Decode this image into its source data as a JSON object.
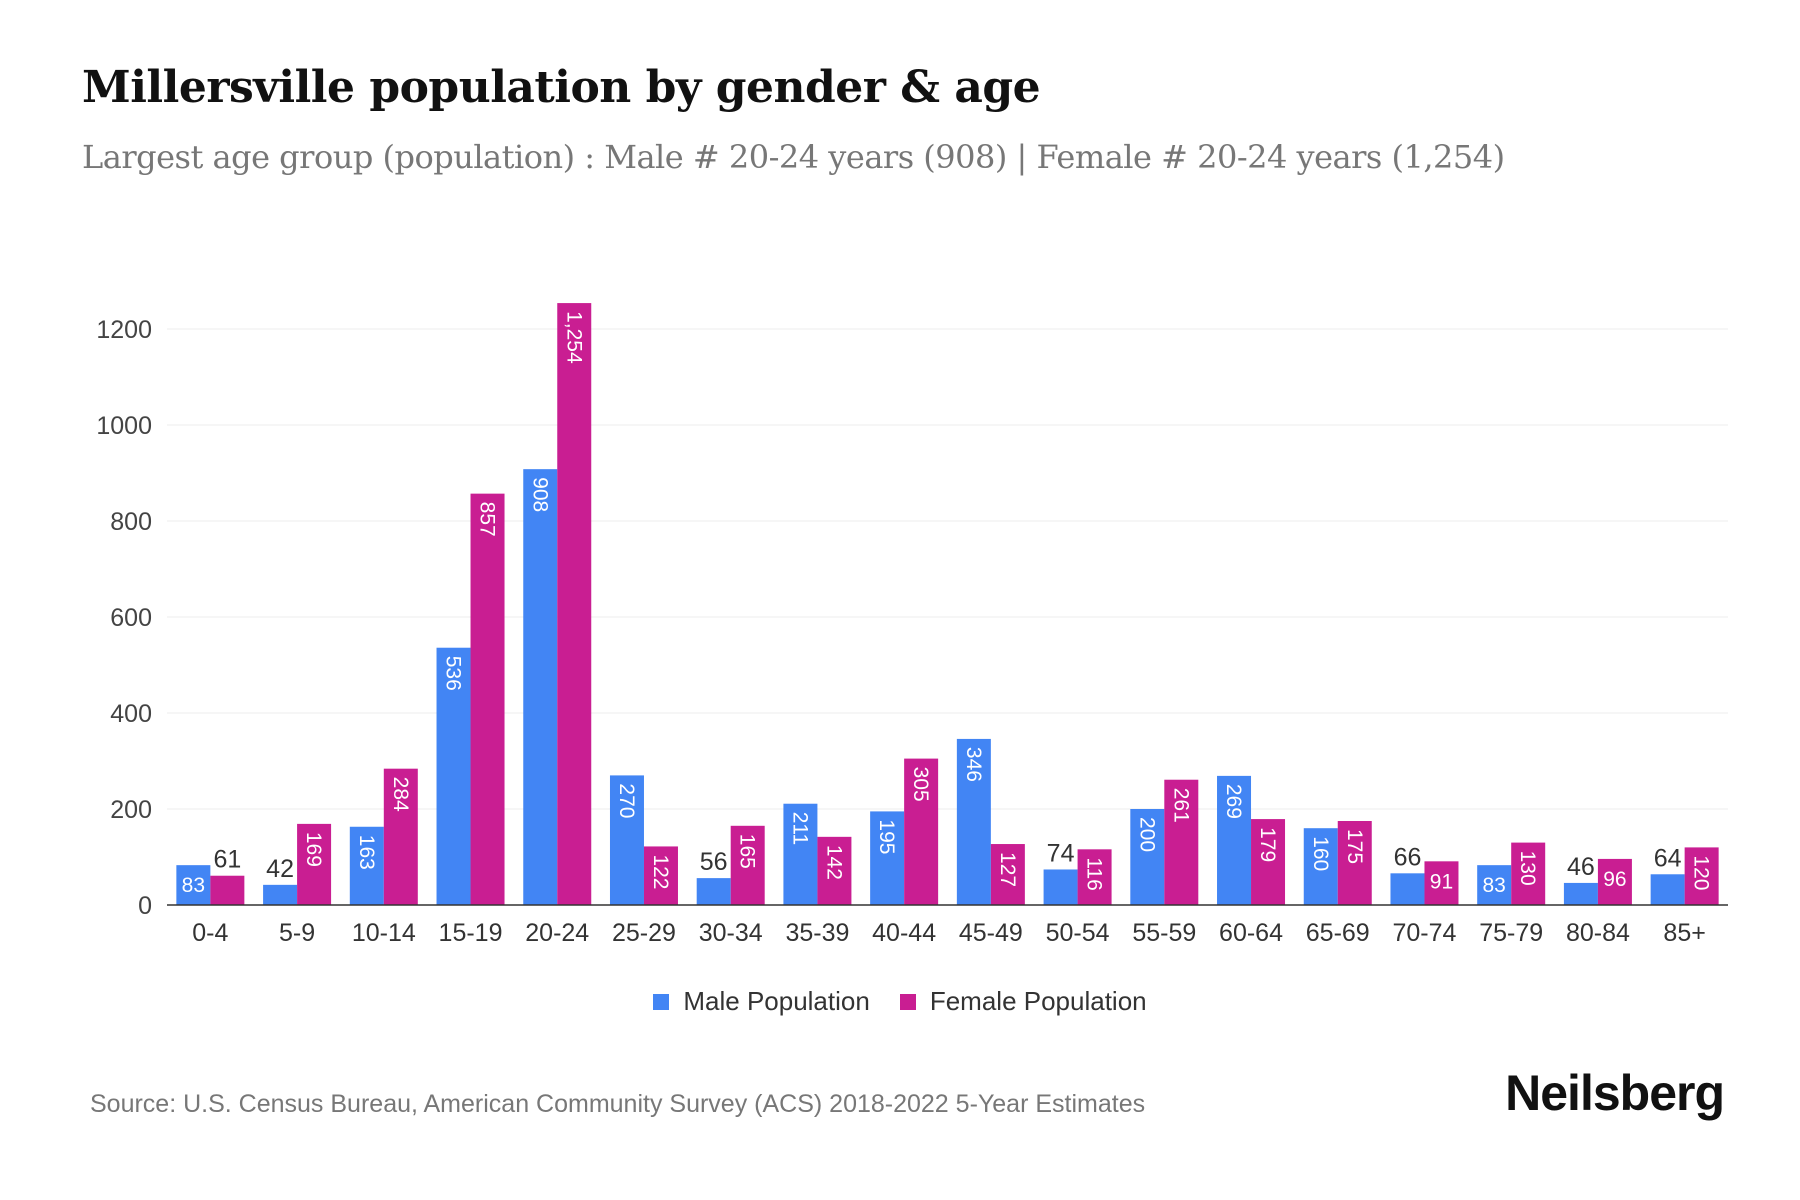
{
  "title": "Millersville population by gender & age",
  "subtitle": "Largest age group (population) : Male # 20-24 years (908) | Female # 20-24 years (1,254)",
  "source": "Source: U.S. Census Bureau, American Community Survey (ACS) 2018-2022 5-Year Estimates",
  "logo": "Neilsberg",
  "colors": {
    "male": "#4285F4",
    "female": "#C91E92"
  },
  "chart_data": {
    "type": "bar",
    "title": "Millersville population by gender & age",
    "xlabel": "",
    "ylabel": "",
    "ylim": [
      0,
      1250
    ],
    "yticks": [
      0,
      200,
      400,
      600,
      800,
      1000,
      1200
    ],
    "grid": true,
    "legend_position": "bottom",
    "categories": [
      "0-4",
      "5-9",
      "10-14",
      "15-19",
      "20-24",
      "25-29",
      "30-34",
      "35-39",
      "40-44",
      "45-49",
      "50-54",
      "55-59",
      "60-64",
      "65-69",
      "70-74",
      "75-79",
      "80-84",
      "85+"
    ],
    "series": [
      {
        "name": "Male Population",
        "values": [
          83,
          42,
          163,
          536,
          908,
          270,
          56,
          211,
          195,
          346,
          74,
          200,
          269,
          160,
          66,
          83,
          46,
          64
        ]
      },
      {
        "name": "Female Population",
        "values": [
          61,
          169,
          284,
          857,
          1254,
          122,
          165,
          142,
          305,
          127,
          116,
          261,
          179,
          175,
          91,
          130,
          96,
          120
        ]
      }
    ]
  }
}
